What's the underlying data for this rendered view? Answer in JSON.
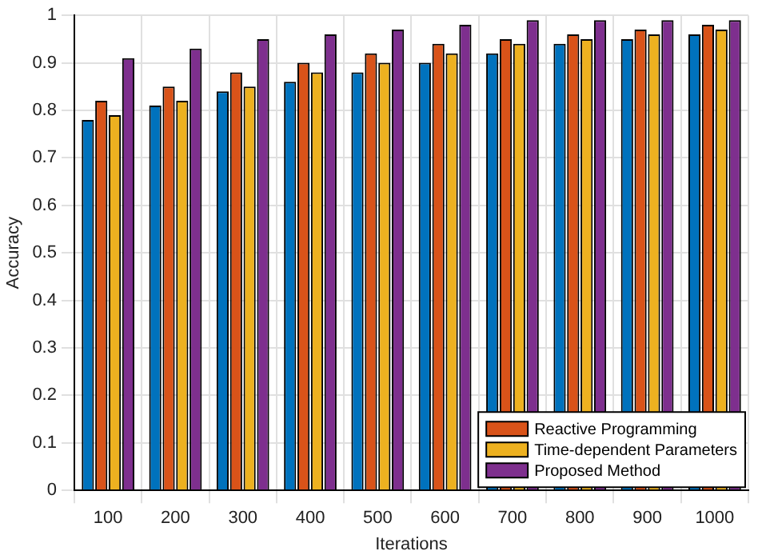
{
  "chart_data": {
    "type": "bar",
    "xlabel": "Iterations",
    "ylabel": "Accuracy",
    "categories": [
      "100",
      "200",
      "300",
      "400",
      "500",
      "600",
      "700",
      "800",
      "900",
      "1000"
    ],
    "series": [
      {
        "color": "#0072bd",
        "values": [
          0.78,
          0.81,
          0.84,
          0.86,
          0.88,
          0.9,
          0.92,
          0.94,
          0.95,
          0.96
        ]
      },
      {
        "name": "Reactive Programming",
        "color": "#d95319",
        "values": [
          0.82,
          0.85,
          0.88,
          0.9,
          0.92,
          0.94,
          0.95,
          0.96,
          0.97,
          0.98
        ]
      },
      {
        "name": "Time-dependent Parameters",
        "color": "#edb120",
        "values": [
          0.79,
          0.82,
          0.85,
          0.88,
          0.9,
          0.92,
          0.94,
          0.95,
          0.96,
          0.97
        ]
      },
      {
        "name": "Proposed Method",
        "color": "#7e2f8e",
        "values": [
          0.91,
          0.93,
          0.95,
          0.96,
          0.97,
          0.98,
          0.99,
          0.99,
          0.99,
          0.99
        ]
      }
    ],
    "ylim": [
      0,
      1
    ],
    "yticks": [
      0,
      0.1,
      0.2,
      0.3,
      0.4,
      0.5,
      0.6,
      0.7,
      0.8,
      0.9,
      1
    ],
    "grid": true,
    "legend": "bottom right"
  }
}
